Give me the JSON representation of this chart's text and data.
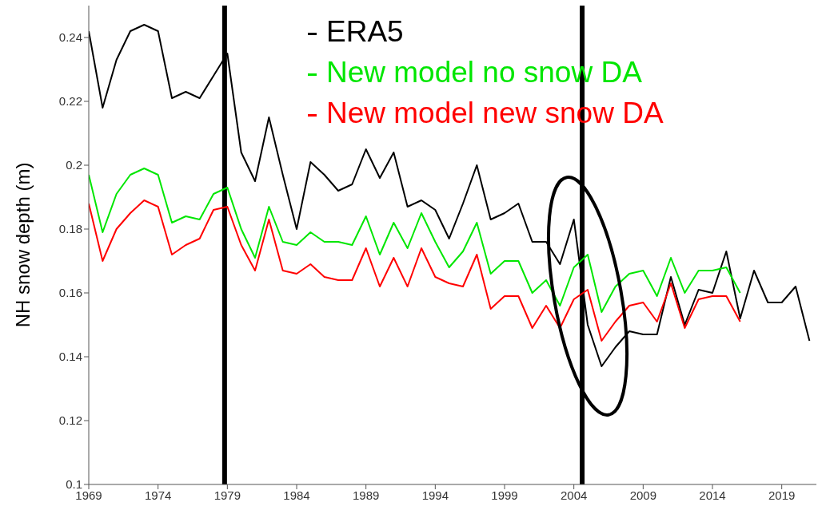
{
  "chart_data": {
    "type": "line",
    "ylabel": "NH snow depth (m)",
    "x": [
      1969,
      1970,
      1971,
      1972,
      1973,
      1974,
      1975,
      1976,
      1977,
      1978,
      1979,
      1980,
      1981,
      1982,
      1983,
      1984,
      1985,
      1986,
      1987,
      1988,
      1989,
      1990,
      1991,
      1992,
      1993,
      1994,
      1995,
      1996,
      1997,
      1998,
      1999,
      2000,
      2001,
      2002,
      2003,
      2004,
      2005,
      2006,
      2007,
      2008,
      2009,
      2010,
      2011,
      2012,
      2013,
      2014,
      2015,
      2016,
      2017,
      2018,
      2019,
      2020,
      2021
    ],
    "series": [
      {
        "name": "ERA5",
        "color": "#000000",
        "values": [
          0.242,
          0.218,
          0.233,
          0.242,
          0.244,
          0.242,
          0.221,
          0.223,
          0.221,
          0.228,
          0.235,
          0.204,
          0.195,
          0.215,
          0.197,
          0.18,
          0.201,
          0.197,
          0.192,
          0.194,
          0.205,
          0.196,
          0.204,
          0.187,
          0.189,
          0.186,
          0.177,
          0.188,
          0.2,
          0.183,
          0.185,
          0.188,
          0.176,
          0.176,
          0.169,
          0.183,
          0.15,
          0.137,
          0.143,
          0.148,
          0.147,
          0.147,
          0.165,
          0.15,
          0.161,
          0.16,
          0.173,
          0.152,
          0.167,
          0.157,
          0.157,
          0.162,
          0.145
        ]
      },
      {
        "name": "New model no snow DA",
        "color": "#00e600",
        "values": [
          0.197,
          0.179,
          0.191,
          0.197,
          0.199,
          0.197,
          0.182,
          0.184,
          0.183,
          0.191,
          0.193,
          0.18,
          0.171,
          0.187,
          0.176,
          0.175,
          0.179,
          0.176,
          0.176,
          0.175,
          0.184,
          0.172,
          0.182,
          0.174,
          0.185,
          0.176,
          0.168,
          0.173,
          0.182,
          0.166,
          0.17,
          0.17,
          0.16,
          0.164,
          0.156,
          0.168,
          0.172,
          0.154,
          0.162,
          0.166,
          0.167,
          0.159,
          0.171,
          0.16,
          0.167,
          0.167,
          0.168,
          0.16,
          null,
          null,
          null,
          null,
          null
        ]
      },
      {
        "name": "New model new snow DA",
        "color": "#ff0000",
        "values": [
          0.188,
          0.17,
          0.18,
          0.185,
          0.189,
          0.187,
          0.172,
          0.175,
          0.177,
          0.186,
          0.187,
          0.175,
          0.167,
          0.183,
          0.167,
          0.166,
          0.169,
          0.165,
          0.164,
          0.164,
          0.174,
          0.162,
          0.171,
          0.162,
          0.174,
          0.165,
          0.163,
          0.162,
          0.172,
          0.155,
          0.159,
          0.159,
          0.149,
          0.156,
          0.149,
          0.158,
          0.161,
          0.145,
          0.151,
          0.156,
          0.157,
          0.151,
          0.163,
          0.149,
          0.158,
          0.159,
          0.159,
          0.151,
          null,
          null,
          null,
          null,
          null
        ]
      }
    ],
    "xlim": [
      1969,
      2021.5
    ],
    "xticks": [
      1969,
      1974,
      1979,
      1984,
      1989,
      1994,
      1999,
      2004,
      2009,
      2014,
      2019
    ],
    "ylim": [
      0.1,
      0.25
    ],
    "yticks": [
      0.1,
      0.12,
      0.14,
      0.16,
      0.18,
      0.2,
      0.22,
      0.24
    ],
    "ref_lines": [
      {
        "axis": "x",
        "value": 1978.8,
        "color": "#000000"
      },
      {
        "axis": "x",
        "value": 2004.6,
        "color": "#000000"
      }
    ],
    "legend": "top",
    "line_style": "solid"
  }
}
